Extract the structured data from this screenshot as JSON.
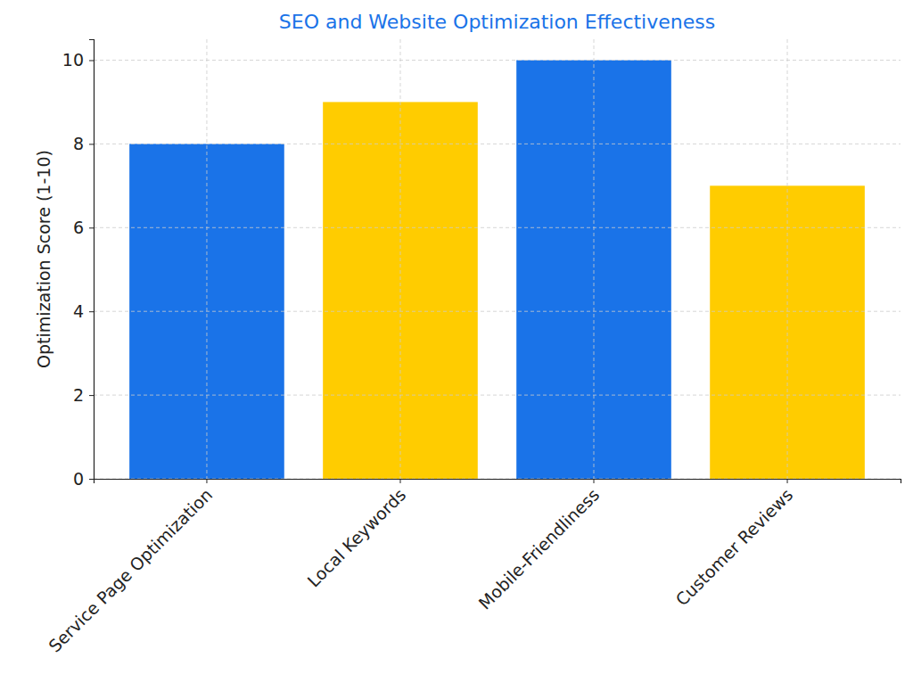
{
  "chart_data": {
    "type": "bar",
    "title": "SEO and Website Optimization Effectiveness",
    "y_label": "Optimization Score (1-10)",
    "categories": [
      "Service Page Optimization",
      "Local Keywords",
      "Mobile-Friendliness",
      "Customer Reviews"
    ],
    "values": [
      8,
      9,
      10,
      7
    ],
    "colors": [
      "#1a73e8",
      "#ffcc00",
      "#1a73e8",
      "#ffcc00"
    ],
    "ylim": [
      0,
      10.5
    ],
    "yticks": [
      0,
      2,
      4,
      6,
      8,
      10
    ],
    "grid": true
  }
}
